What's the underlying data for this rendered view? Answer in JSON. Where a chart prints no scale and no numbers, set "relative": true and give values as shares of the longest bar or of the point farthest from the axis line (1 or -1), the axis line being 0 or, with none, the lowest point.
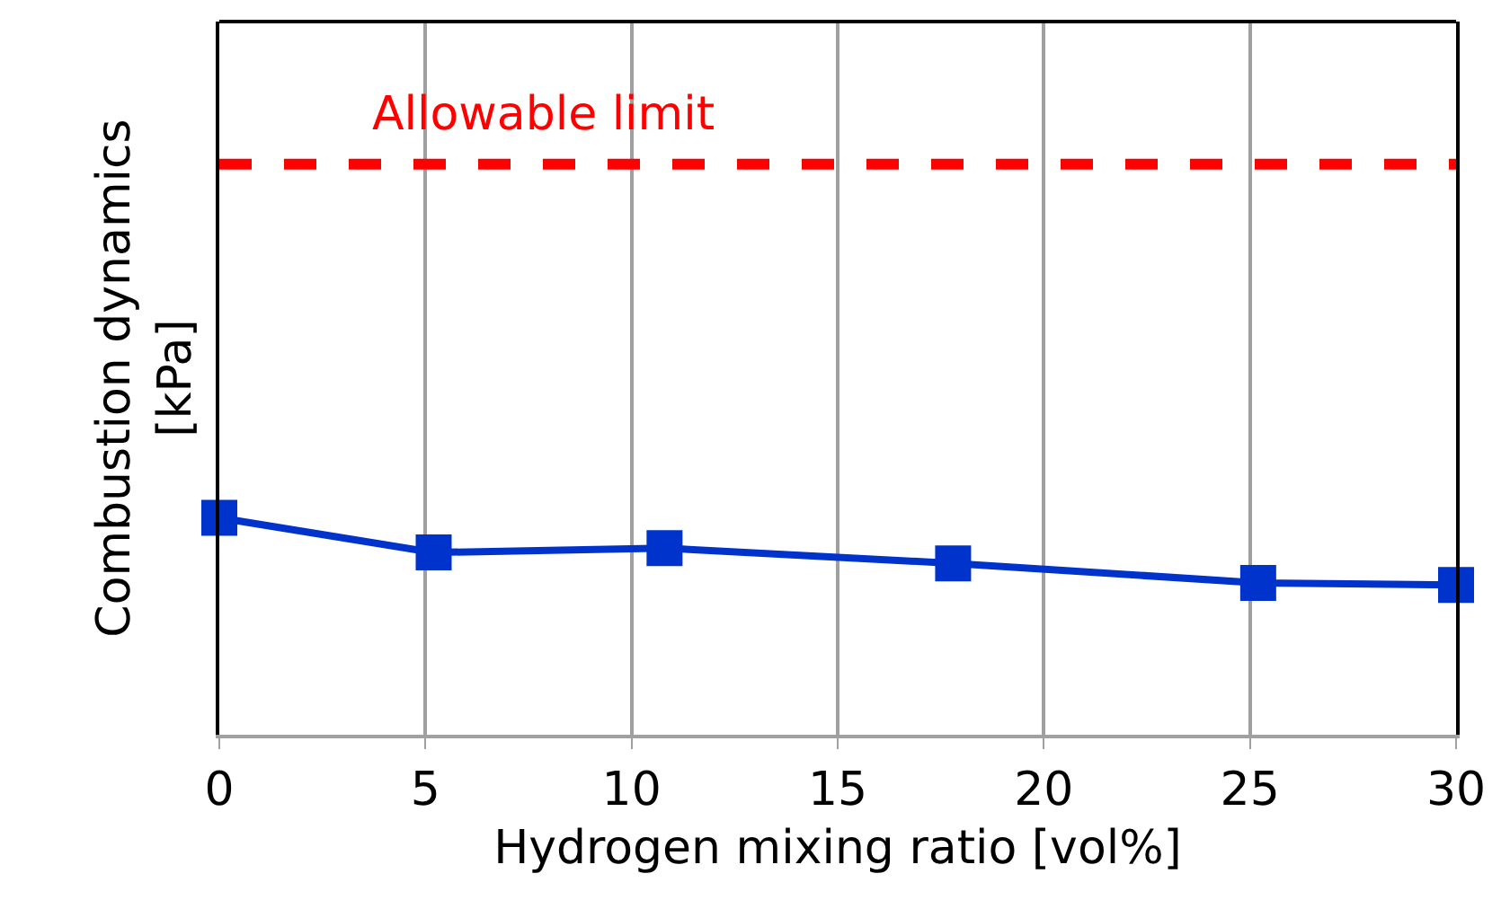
{
  "chart_data": {
    "type": "line",
    "xlabel": "Hydrogen mixing ratio [vol%]",
    "ylabel": "Combustion dynamics\n[kPa]",
    "relative": true,
    "x": [
      0,
      5.2,
      10.8,
      17.8,
      25.2,
      30
    ],
    "series": [
      {
        "color": "#0033cc",
        "values": [
          1,
          0.84,
          0.86,
          0.79,
          0.7,
          0.69
        ]
      }
    ],
    "xlim": [
      0,
      30
    ],
    "xticks": [
      0,
      5,
      10,
      15,
      20,
      25,
      30
    ],
    "grid": "x",
    "marker": "square",
    "line_style": "solid",
    "ref_lines": [
      {
        "axis": "y",
        "value": 2.63,
        "label": "Allowable limit",
        "color": "#ff0000",
        "line_style": "dashed"
      }
    ]
  }
}
